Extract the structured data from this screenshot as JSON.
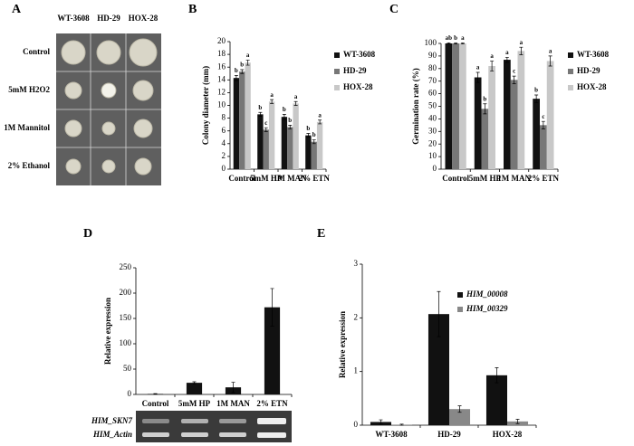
{
  "panel_a": {
    "panel_label": "A",
    "columns": [
      "WT-3608",
      "HD-29",
      "HOX-28"
    ],
    "rows": [
      "Control",
      "5mM H2O2",
      "1M Mannitol",
      "2% Ethanol"
    ]
  },
  "gel": {
    "rows": [
      "HIM_SKN7",
      "HIM_Actin"
    ]
  },
  "chart_data": [
    {
      "type": "bar",
      "panel_label": "B",
      "y_label": "Colony diameter (mm)",
      "categories": [
        "Control",
        "5mM HP",
        "1M MAN",
        "2% ETN"
      ],
      "ylim": [
        0,
        20
      ],
      "yticks": [
        0,
        2,
        4,
        6,
        8,
        10,
        12,
        14,
        16,
        18,
        20
      ],
      "legend": "right",
      "series": [
        {
          "name": "WT-3608",
          "color": "#111111",
          "values": [
            14.3,
            8.6,
            8.2,
            5.3
          ],
          "errors": [
            0.4,
            0.3,
            0.4,
            0.3
          ],
          "letters": [
            "b",
            "b",
            "b",
            "b"
          ]
        },
        {
          "name": "HD-29",
          "color": "#777777",
          "values": [
            15.3,
            6.2,
            6.6,
            4.3
          ],
          "errors": [
            0.3,
            0.3,
            0.3,
            0.3
          ],
          "letters": [
            "b",
            "c",
            "b",
            "b"
          ]
        },
        {
          "name": "HOX-28",
          "color": "#c8c8c8",
          "values": [
            16.7,
            10.6,
            10.3,
            7.4
          ],
          "errors": [
            0.4,
            0.3,
            0.3,
            0.3
          ],
          "letters": [
            "a",
            "a",
            "a",
            "a"
          ]
        }
      ]
    },
    {
      "type": "bar",
      "panel_label": "C",
      "y_label": "Germination rate (%)",
      "categories": [
        "Control",
        "5mM HP",
        "1M MAN",
        "2% ETN"
      ],
      "ylim": [
        0,
        100
      ],
      "yticks": [
        0,
        10,
        20,
        30,
        40,
        50,
        60,
        70,
        80,
        90,
        100
      ],
      "legend": "right",
      "series": [
        {
          "name": "WT-3608",
          "color": "#111111",
          "values": [
            100,
            73,
            87,
            56
          ],
          "errors": [
            0.5,
            4,
            2,
            3
          ],
          "letters": [
            "ab",
            "a",
            "a",
            "b"
          ]
        },
        {
          "name": "HD-29",
          "color": "#777777",
          "values": [
            100,
            48,
            71,
            35
          ],
          "errors": [
            0.5,
            4,
            3,
            3
          ],
          "letters": [
            "b",
            "b",
            "c",
            "c"
          ]
        },
        {
          "name": "HOX-28",
          "color": "#c8c8c8",
          "values": [
            100,
            82,
            94,
            86
          ],
          "errors": [
            0.5,
            4,
            3,
            4
          ],
          "letters": [
            "a",
            "a",
            "a",
            "a"
          ]
        }
      ]
    },
    {
      "type": "bar",
      "panel_label": "D",
      "y_label": "Relative expression",
      "categories": [
        "Control",
        "5mM HP",
        "1M MAN",
        "2% ETN"
      ],
      "ylim": [
        0,
        250
      ],
      "yticks": [
        0,
        50,
        100,
        150,
        200,
        250
      ],
      "color": "#111111",
      "values": [
        1,
        23,
        14,
        172
      ],
      "errors": [
        0.5,
        2,
        10,
        37
      ]
    },
    {
      "type": "bar",
      "panel_label": "E",
      "y_label": "Relative expression",
      "categories": [
        "WT-3608",
        "HD-29",
        "HOX-28"
      ],
      "ylim": [
        0,
        3
      ],
      "yticks": [
        0,
        1,
        2,
        3
      ],
      "legend": "upper-center",
      "italic_names": true,
      "series": [
        {
          "name": "HIM_00008",
          "color": "#111111",
          "values": [
            0.06,
            2.07,
            0.93
          ],
          "errors": [
            0.04,
            0.42,
            0.14
          ]
        },
        {
          "name": "HIM_00329",
          "color": "#888888",
          "values": [
            0.01,
            0.3,
            0.07
          ],
          "errors": [
            0.01,
            0.06,
            0.04
          ]
        }
      ]
    }
  ]
}
